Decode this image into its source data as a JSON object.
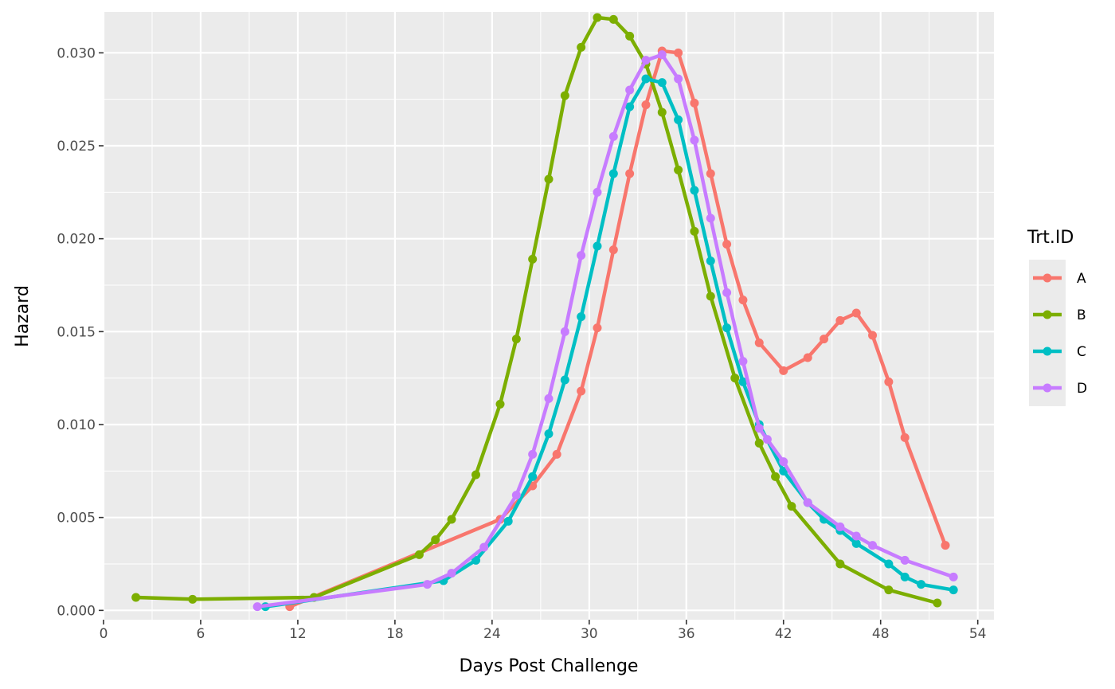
{
  "chart_data": {
    "type": "line",
    "title": "",
    "xlabel": "Days Post Challenge",
    "ylabel": "Hazard",
    "xlim": [
      0,
      55
    ],
    "ylim": [
      -0.0005,
      0.0322
    ],
    "x_ticks": [
      0,
      6,
      12,
      18,
      24,
      30,
      36,
      42,
      48,
      54
    ],
    "x_tick_labels": [
      "0",
      "6",
      "12",
      "18",
      "24",
      "30",
      "36",
      "42",
      "48",
      "54"
    ],
    "y_ticks": [
      0.0,
      0.005,
      0.01,
      0.015,
      0.02,
      0.025,
      0.03
    ],
    "y_tick_labels": [
      "0.000",
      "0.005",
      "0.010",
      "0.015",
      "0.020",
      "0.025",
      "0.030"
    ],
    "grid": true,
    "legend": {
      "title": "Trt.ID",
      "position": "right"
    },
    "series": [
      {
        "name": "A",
        "color": "#F8766D",
        "x": [
          11.5,
          24.5,
          26.5,
          28,
          29.5,
          30.5,
          31.5,
          32.5,
          33.5,
          34.5,
          35.5,
          36.5,
          37.5,
          38.5,
          39.5,
          40.5,
          42,
          43.5,
          44.5,
          45.5,
          46.5,
          47.5,
          48.5,
          49.5,
          52
        ],
        "y": [
          0.0002,
          0.0049,
          0.0067,
          0.0084,
          0.0118,
          0.0152,
          0.0194,
          0.0235,
          0.0272,
          0.0301,
          0.03,
          0.0273,
          0.0235,
          0.0197,
          0.0167,
          0.0144,
          0.0129,
          0.0136,
          0.0146,
          0.0156,
          0.016,
          0.0148,
          0.0123,
          0.0093,
          0.0035
        ]
      },
      {
        "name": "B",
        "color": "#7CAE00",
        "x": [
          2,
          5.5,
          13,
          19.5,
          20.5,
          21.5,
          23,
          24.5,
          25.5,
          26.5,
          27.5,
          28.5,
          29.5,
          30.5,
          31.5,
          32.5,
          33.5,
          34.5,
          35.5,
          36.5,
          37.5,
          39,
          40.5,
          41.5,
          42.5,
          45.5,
          48.5,
          51.5
        ],
        "y": [
          0.0007,
          0.0006,
          0.0007,
          0.003,
          0.0038,
          0.0049,
          0.0073,
          0.0111,
          0.0146,
          0.0189,
          0.0232,
          0.0277,
          0.0303,
          0.0319,
          0.0318,
          0.0309,
          0.0294,
          0.0268,
          0.0237,
          0.0204,
          0.0169,
          0.0125,
          0.009,
          0.0072,
          0.0056,
          0.0025,
          0.0011,
          0.0004
        ]
      },
      {
        "name": "C",
        "color": "#00BFC4",
        "x": [
          10,
          21,
          23,
          25,
          26.5,
          27.5,
          28.5,
          29.5,
          30.5,
          31.5,
          32.5,
          33.5,
          34.5,
          35.5,
          36.5,
          37.5,
          38.5,
          39.5,
          40.5,
          42,
          43.5,
          44.5,
          45.5,
          46.5,
          48.5,
          49.5,
          50.5,
          52.5
        ],
        "y": [
          0.0002,
          0.0016,
          0.0027,
          0.0048,
          0.0072,
          0.0095,
          0.0124,
          0.0158,
          0.0196,
          0.0235,
          0.0271,
          0.0286,
          0.0284,
          0.0264,
          0.0226,
          0.0188,
          0.0152,
          0.0123,
          0.01,
          0.0075,
          0.0058,
          0.0049,
          0.0043,
          0.0036,
          0.0025,
          0.0018,
          0.0014,
          0.0011
        ]
      },
      {
        "name": "D",
        "color": "#C77CFF",
        "x": [
          9.5,
          20,
          21.5,
          23.5,
          25.5,
          26.5,
          27.5,
          28.5,
          29.5,
          30.5,
          31.5,
          32.5,
          33.5,
          34.5,
          35.5,
          36.5,
          37.5,
          38.5,
          39.5,
          40.5,
          41,
          42,
          43.5,
          45.5,
          46.5,
          47.5,
          49.5,
          52.5
        ],
        "y": [
          0.0002,
          0.0014,
          0.002,
          0.0034,
          0.0062,
          0.0084,
          0.0114,
          0.015,
          0.0191,
          0.0225,
          0.0255,
          0.028,
          0.0296,
          0.0299,
          0.0286,
          0.0253,
          0.0211,
          0.0171,
          0.0134,
          0.0098,
          0.0092,
          0.008,
          0.0058,
          0.0045,
          0.004,
          0.0035,
          0.0027,
          0.0018
        ]
      }
    ]
  }
}
